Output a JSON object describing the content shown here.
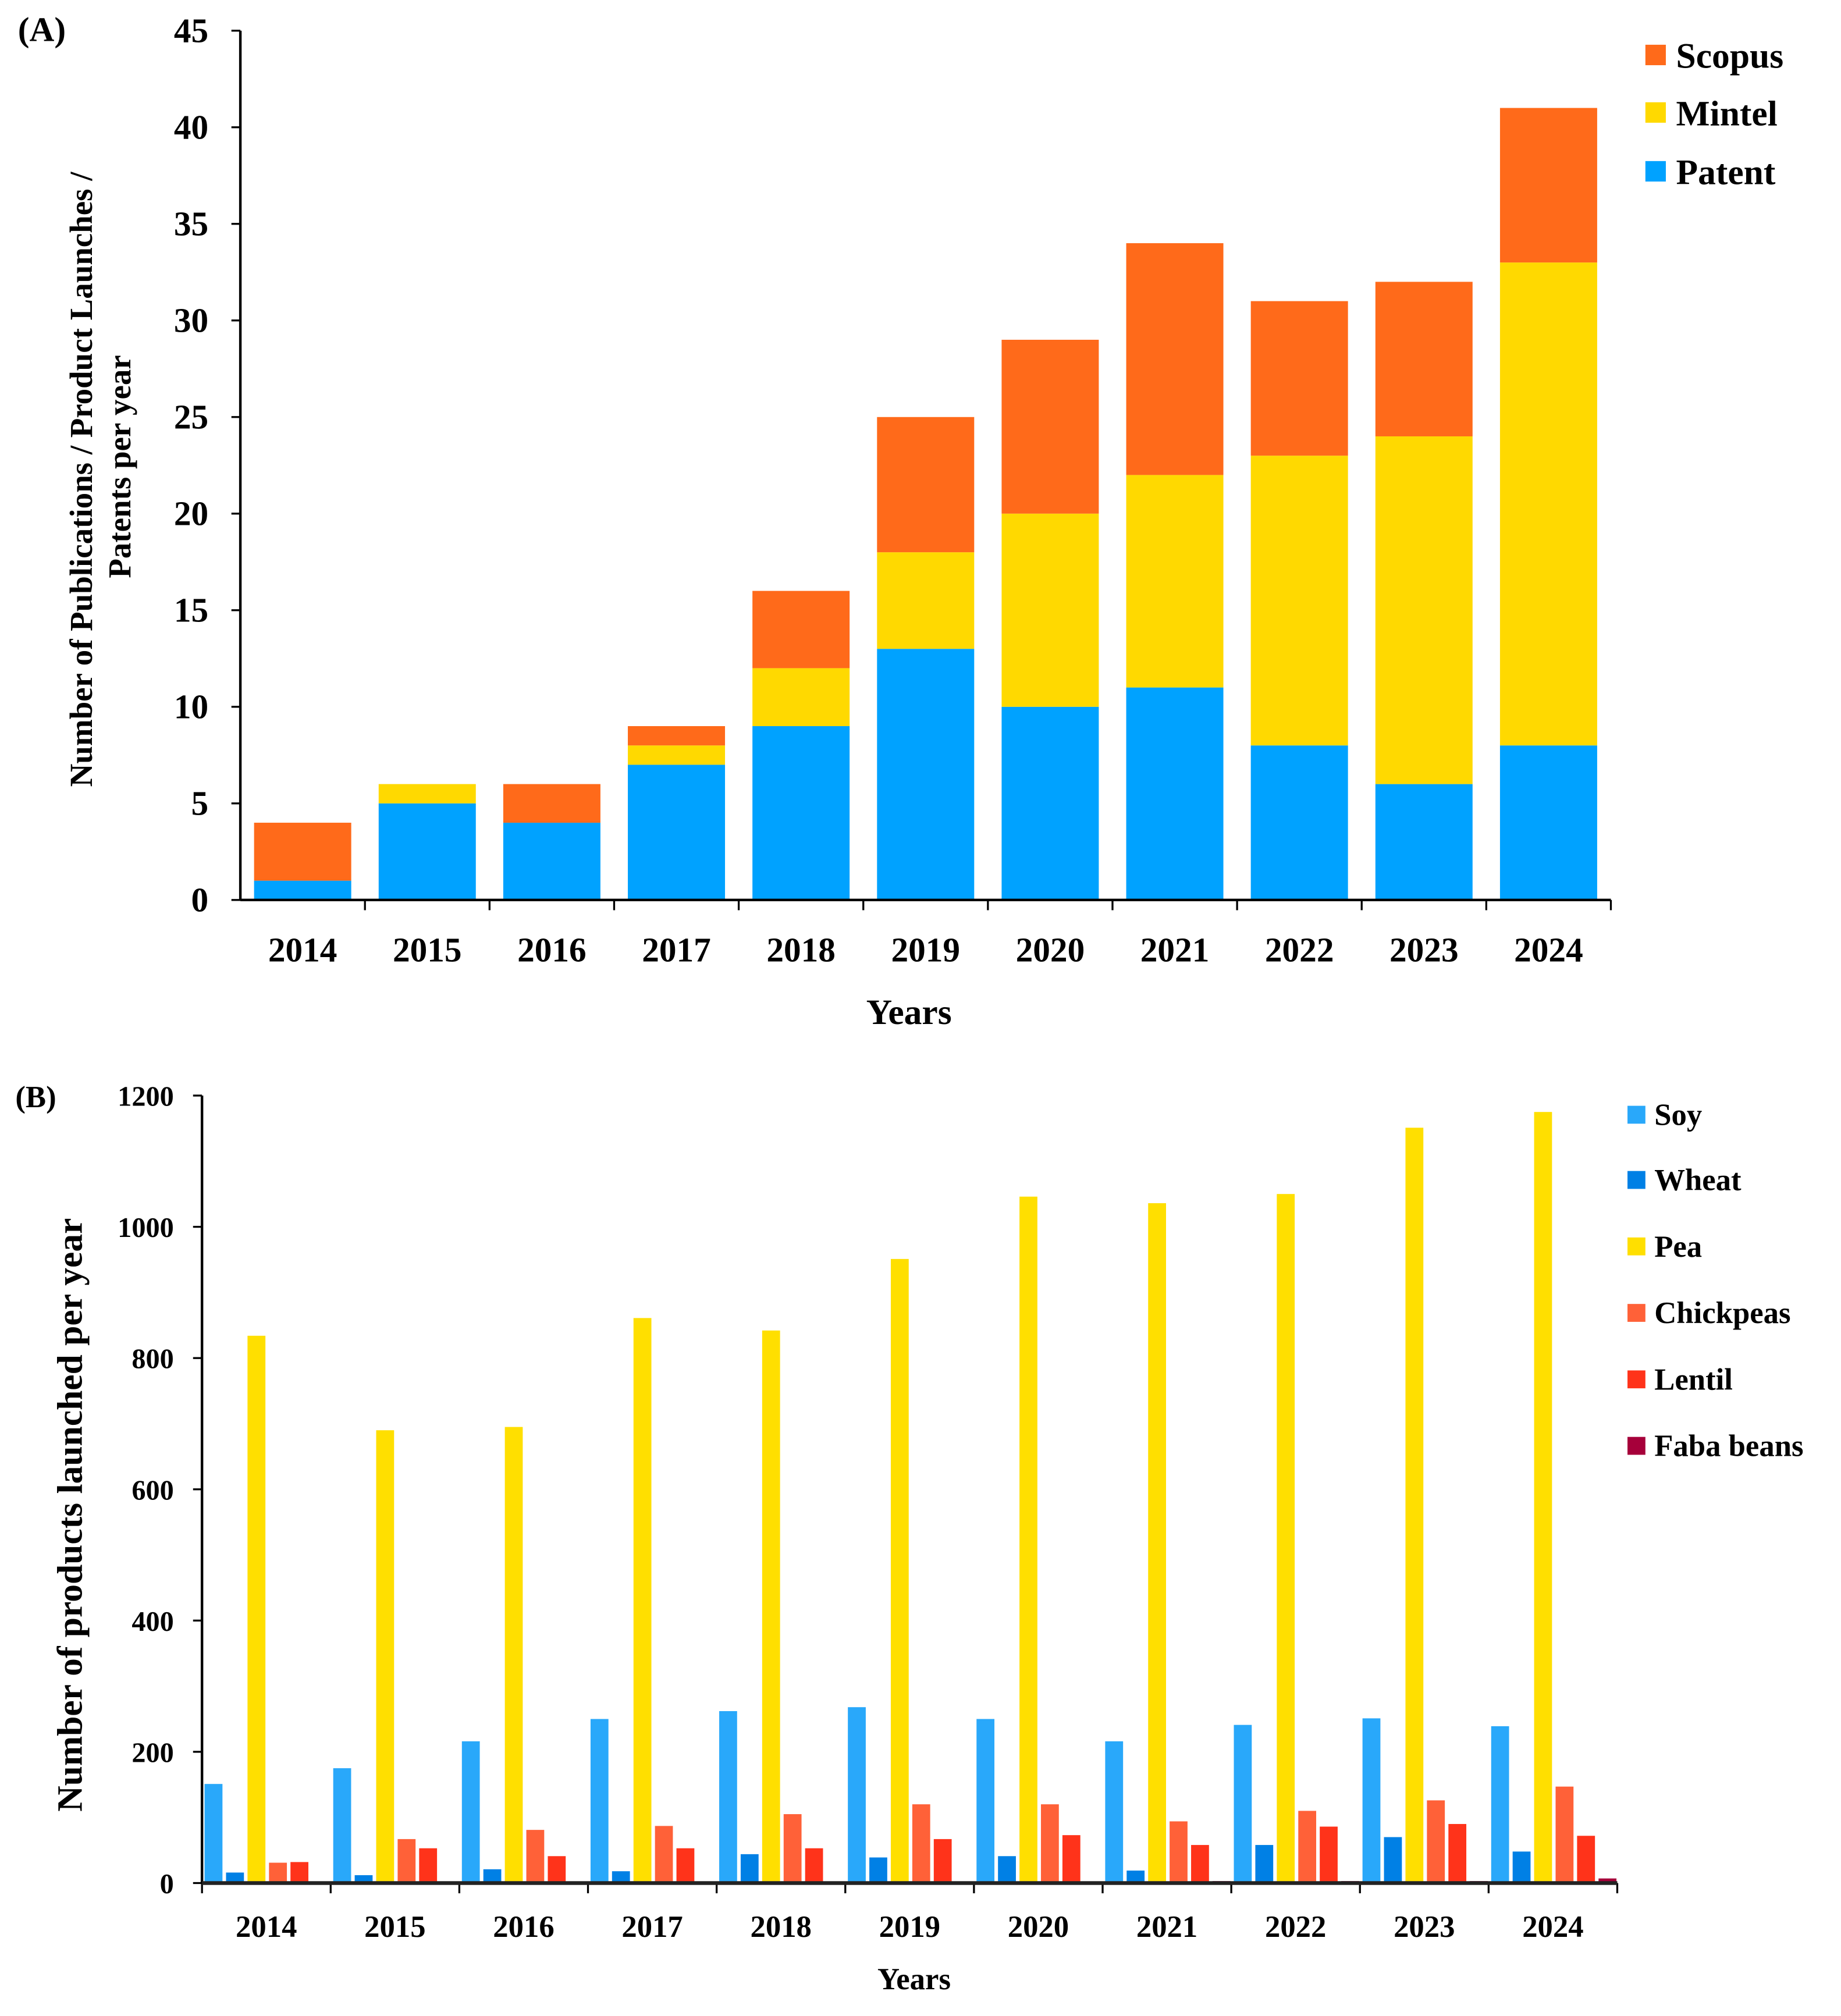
{
  "chart_data": [
    {
      "panel_label": "(A)",
      "type": "bar",
      "stacked": true,
      "categories": [
        "2014",
        "2015",
        "2016",
        "2017",
        "2018",
        "2019",
        "2020",
        "2021",
        "2022",
        "2023",
        "2024"
      ],
      "series": [
        {
          "name": "Patent",
          "color": "#00A2FF",
          "values": [
            1,
            5,
            4,
            7,
            9,
            13,
            10,
            11,
            8,
            6,
            8
          ]
        },
        {
          "name": "Mintel",
          "color": "#FFD900",
          "values": [
            0,
            1,
            0,
            1,
            3,
            5,
            10,
            11,
            15,
            18,
            25
          ]
        },
        {
          "name": "Scopus",
          "color": "#FF6A1A",
          "values": [
            3,
            0,
            2,
            1,
            4,
            7,
            9,
            12,
            8,
            8,
            8
          ]
        }
      ],
      "legend_order": [
        "Scopus",
        "Mintel",
        "Patent"
      ],
      "legend_position": "top-right",
      "xlabel": "Years",
      "ylabel_lines": [
        "Number of Publications / Product Launches /",
        "Patents per year"
      ],
      "ylim": [
        0,
        45
      ],
      "yticks": [
        "0",
        "5",
        "10",
        "15",
        "20",
        "25",
        "30",
        "35",
        "40",
        "45"
      ],
      "grid": false
    },
    {
      "panel_label": "(B)",
      "type": "bar",
      "stacked": false,
      "categories": [
        "2014",
        "2015",
        "2016",
        "2017",
        "2018",
        "2019",
        "2020",
        "2021",
        "2022",
        "2023",
        "2024"
      ],
      "series": [
        {
          "name": "Soy",
          "color": "#29A8FA",
          "values": [
            151,
            175,
            216,
            250,
            262,
            268,
            250,
            216,
            241,
            251,
            239
          ]
        },
        {
          "name": "Wheat",
          "color": "#0080E5",
          "values": [
            16,
            12,
            21,
            18,
            44,
            39,
            41,
            19,
            58,
            70,
            48
          ]
        },
        {
          "name": "Pea",
          "color": "#FFDF00",
          "values": [
            834,
            690,
            695,
            861,
            842,
            951,
            1046,
            1036,
            1050,
            1151,
            1175
          ]
        },
        {
          "name": "Chickpeas",
          "color": "#FF6138",
          "values": [
            31,
            67,
            81,
            87,
            105,
            120,
            120,
            94,
            110,
            126,
            147
          ]
        },
        {
          "name": "Lentil",
          "color": "#FF331A",
          "values": [
            32,
            53,
            41,
            53,
            53,
            67,
            73,
            58,
            86,
            90,
            72
          ]
        },
        {
          "name": "Faba beans",
          "color": "#A6003A",
          "values": [
            0,
            0,
            0,
            0,
            0,
            0,
            1,
            3,
            3,
            3,
            7
          ]
        }
      ],
      "legend_position": "right",
      "xlabel": "Years",
      "ylabel": "Number of products launched per year",
      "ylim": [
        0,
        1200
      ],
      "yticks": [
        "0",
        "200",
        "400",
        "600",
        "800",
        "1000",
        "1200"
      ],
      "grid": false
    }
  ]
}
